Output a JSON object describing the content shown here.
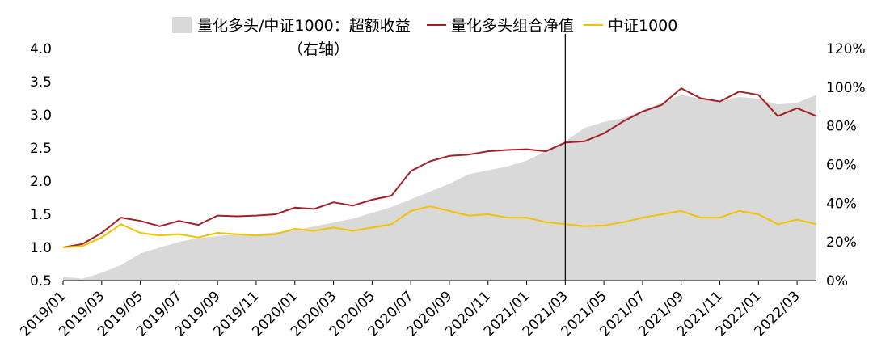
{
  "chart_data": {
    "type": "line",
    "legend": {
      "placement": "top",
      "items": [
        {
          "label": "量化多头/中证1000：超额收益",
          "label_line2": "（右轴）",
          "kind": "area",
          "color": "#d9d9d9"
        },
        {
          "label": "量化多头组合净值",
          "kind": "line",
          "color": "#a32126"
        },
        {
          "label": "中证1000",
          "kind": "line",
          "color": "#f2c200"
        }
      ]
    },
    "left_axis": {
      "min": 0.5,
      "max": 4.0,
      "ticks": [
        "0.5",
        "1.0",
        "1.5",
        "2.0",
        "2.5",
        "3.0",
        "3.5",
        "4.0"
      ]
    },
    "right_axis": {
      "min": 0,
      "max": 120,
      "ticks": [
        "0%",
        "20%",
        "40%",
        "60%",
        "80%",
        "100%",
        "120%"
      ]
    },
    "x_axis": {
      "start": "2019/01",
      "end": "2022/04",
      "tick_labels": [
        "2019/01",
        "2019/03",
        "2019/05",
        "2019/07",
        "2019/09",
        "2019/11",
        "2020/01",
        "2020/03",
        "2020/05",
        "2020/07",
        "2020/09",
        "2020/11",
        "2021/01",
        "2021/03",
        "2021/05",
        "2021/07",
        "2021/09",
        "2021/11",
        "2022/01",
        "2022/03"
      ]
    },
    "vertical_marker": "2021/03",
    "series": [
      {
        "name": "量化多头/中证1000：超额收益",
        "axis": "right",
        "color": "#d9d9d9",
        "x": [
          "2019/01",
          "2019/02",
          "2019/03",
          "2019/04",
          "2019/05",
          "2019/06",
          "2019/07",
          "2019/08",
          "2019/09",
          "2019/10",
          "2019/11",
          "2019/12",
          "2020/01",
          "2020/02",
          "2020/03",
          "2020/04",
          "2020/05",
          "2020/06",
          "2020/07",
          "2020/08",
          "2020/09",
          "2020/10",
          "2020/11",
          "2020/12",
          "2021/01",
          "2021/02",
          "2021/03",
          "2021/04",
          "2021/05",
          "2021/06",
          "2021/07",
          "2021/08",
          "2021/09",
          "2021/10",
          "2021/11",
          "2021/12",
          "2022/01",
          "2022/02",
          "2022/03",
          "2022/04"
        ],
        "values": [
          2,
          1,
          4,
          8,
          14,
          17,
          20,
          22,
          23,
          24,
          24,
          25,
          26,
          28,
          30,
          32,
          35,
          38,
          42,
          46,
          50,
          55,
          57,
          59,
          62,
          67,
          72,
          79,
          82,
          84,
          88,
          92,
          96,
          94,
          93,
          95,
          94,
          91,
          92,
          96
        ]
      },
      {
        "name": "量化多头组合净值",
        "axis": "left",
        "color": "#a32126",
        "x": [
          "2019/01",
          "2019/02",
          "2019/03",
          "2019/04",
          "2019/05",
          "2019/06",
          "2019/07",
          "2019/08",
          "2019/09",
          "2019/10",
          "2019/11",
          "2019/12",
          "2020/01",
          "2020/02",
          "2020/03",
          "2020/04",
          "2020/05",
          "2020/06",
          "2020/07",
          "2020/08",
          "2020/09",
          "2020/10",
          "2020/11",
          "2020/12",
          "2021/01",
          "2021/02",
          "2021/03",
          "2021/04",
          "2021/05",
          "2021/06",
          "2021/07",
          "2021/08",
          "2021/09",
          "2021/10",
          "2021/11",
          "2021/12",
          "2022/01",
          "2022/02",
          "2022/03",
          "2022/04"
        ],
        "values": [
          1.0,
          1.05,
          1.22,
          1.45,
          1.4,
          1.32,
          1.4,
          1.34,
          1.48,
          1.47,
          1.48,
          1.5,
          1.6,
          1.58,
          1.68,
          1.63,
          1.72,
          1.78,
          2.15,
          2.3,
          2.38,
          2.4,
          2.45,
          2.47,
          2.48,
          2.45,
          2.58,
          2.6,
          2.72,
          2.9,
          3.05,
          3.15,
          3.4,
          3.25,
          3.2,
          3.35,
          3.3,
          2.98,
          3.1,
          2.98
        ]
      },
      {
        "name": "中证1000",
        "axis": "left",
        "color": "#f2c200",
        "x": [
          "2019/01",
          "2019/02",
          "2019/03",
          "2019/04",
          "2019/05",
          "2019/06",
          "2019/07",
          "2019/08",
          "2019/09",
          "2019/10",
          "2019/11",
          "2019/12",
          "2020/01",
          "2020/02",
          "2020/03",
          "2020/04",
          "2020/05",
          "2020/06",
          "2020/07",
          "2020/08",
          "2020/09",
          "2020/10",
          "2020/11",
          "2020/12",
          "2021/01",
          "2021/02",
          "2021/03",
          "2021/04",
          "2021/05",
          "2021/06",
          "2021/07",
          "2021/08",
          "2021/09",
          "2021/10",
          "2021/11",
          "2021/12",
          "2022/01",
          "2022/02",
          "2022/03",
          "2022/04"
        ],
        "values": [
          1.0,
          1.02,
          1.15,
          1.35,
          1.22,
          1.18,
          1.2,
          1.15,
          1.22,
          1.2,
          1.18,
          1.2,
          1.28,
          1.25,
          1.3,
          1.25,
          1.3,
          1.35,
          1.55,
          1.62,
          1.55,
          1.48,
          1.5,
          1.45,
          1.45,
          1.38,
          1.35,
          1.32,
          1.33,
          1.38,
          1.45,
          1.5,
          1.55,
          1.45,
          1.45,
          1.55,
          1.5,
          1.35,
          1.42,
          1.35
        ]
      }
    ]
  }
}
